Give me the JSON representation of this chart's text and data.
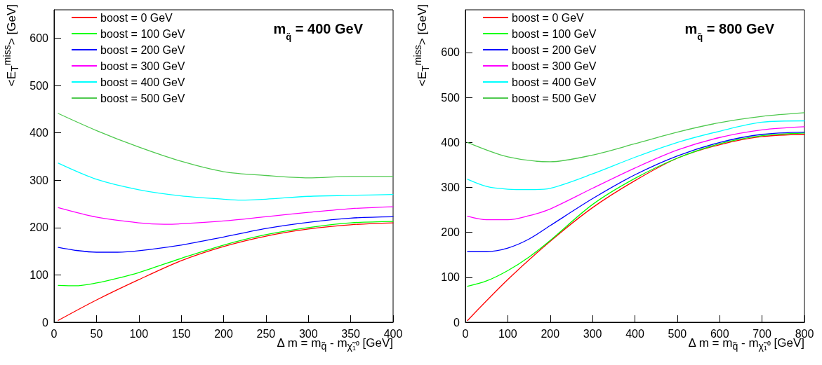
{
  "chart_data": [
    {
      "type": "line",
      "title": "m$_{q̃}$ = 400 GeV",
      "xlabel": "Δ m = m$_{q̃}$ - m$_{χ̃₁⁰}$ [GeV]",
      "ylabel": "<E$_{T}$$^{miss}$> [GeV]",
      "xlim": [
        0,
        400
      ],
      "ylim": [
        0,
        660
      ],
      "xticks": [
        0,
        50,
        100,
        150,
        200,
        250,
        300,
        350,
        400
      ],
      "yticks": [
        0,
        100,
        200,
        300,
        400,
        500,
        600
      ],
      "grid": false,
      "legend": "top left",
      "marker": "none",
      "line_style": "solid",
      "series": [
        {
          "name": "boost = 0 GeV",
          "color": "#ff0000",
          "x": [
            5,
            50,
            100,
            150,
            200,
            250,
            300,
            350,
            400
          ],
          "values": [
            4,
            47,
            90,
            130,
            160,
            182,
            197,
            206,
            210
          ]
        },
        {
          "name": "boost = 100 GeV",
          "color": "#00ff00",
          "x": [
            5,
            25,
            50,
            75,
            100,
            150,
            200,
            250,
            300,
            350,
            400
          ],
          "values": [
            78,
            77,
            83,
            93,
            105,
            135,
            163,
            185,
            200,
            210,
            213
          ]
        },
        {
          "name": "boost = 200 GeV",
          "color": "#0000ff",
          "x": [
            5,
            25,
            50,
            75,
            100,
            150,
            200,
            250,
            300,
            350,
            400
          ],
          "values": [
            158,
            152,
            148,
            148,
            151,
            163,
            180,
            198,
            211,
            220,
            223
          ]
        },
        {
          "name": "boost = 300 GeV",
          "color": "#ff00ff",
          "x": [
            5,
            50,
            100,
            130,
            150,
            200,
            250,
            300,
            350,
            400
          ],
          "values": [
            242,
            222,
            210,
            207,
            208,
            214,
            223,
            232,
            240,
            244
          ]
        },
        {
          "name": "boost = 400 GeV",
          "color": "#00ffff",
          "x": [
            5,
            50,
            100,
            150,
            200,
            220,
            250,
            300,
            350,
            400
          ],
          "values": [
            336,
            302,
            280,
            267,
            260,
            258,
            260,
            266,
            268,
            270
          ]
        },
        {
          "name": "boost = 500 GeV",
          "color": "#4fc94f",
          "x": [
            5,
            50,
            100,
            150,
            200,
            250,
            300,
            350,
            400
          ],
          "values": [
            441,
            405,
            370,
            340,
            318,
            310,
            305,
            308,
            308
          ]
        }
      ]
    },
    {
      "type": "line",
      "title": "m$_{q̃}$ = 800 GeV",
      "xlabel": "Δ m = m$_{q̃}$ - m$_{χ̃₁⁰}$ [GeV]",
      "ylabel": "<E$_{T}$$^{miss}$> [GeV]",
      "xlim": [
        0,
        800
      ],
      "ylim": [
        0,
        695
      ],
      "xticks": [
        0,
        100,
        200,
        300,
        400,
        500,
        600,
        700,
        800
      ],
      "yticks": [
        0,
        100,
        200,
        300,
        400,
        500,
        600
      ],
      "grid": false,
      "legend": "top left",
      "marker": "none",
      "line_style": "solid",
      "series": [
        {
          "name": "boost = 0 GeV",
          "color": "#ff0000",
          "x": [
            5,
            100,
            200,
            300,
            400,
            500,
            600,
            700,
            800
          ],
          "values": [
            4,
            95,
            180,
            255,
            315,
            365,
            395,
            413,
            418
          ]
        },
        {
          "name": "boost = 100 GeV",
          "color": "#00ff00",
          "x": [
            5,
            50,
            100,
            150,
            200,
            300,
            400,
            500,
            600,
            700,
            800
          ],
          "values": [
            80,
            92,
            115,
            145,
            182,
            262,
            320,
            365,
            397,
            415,
            421
          ]
        },
        {
          "name": "boost = 200 GeV",
          "color": "#0000ff",
          "x": [
            5,
            50,
            100,
            150,
            200,
            300,
            400,
            500,
            600,
            700,
            800
          ],
          "values": [
            157,
            157,
            165,
            185,
            215,
            275,
            328,
            370,
            400,
            418,
            423
          ]
        },
        {
          "name": "boost = 300 GeV",
          "color": "#ff00ff",
          "x": [
            5,
            50,
            100,
            150,
            200,
            300,
            400,
            500,
            600,
            700,
            800
          ],
          "values": [
            236,
            228,
            228,
            237,
            252,
            298,
            343,
            383,
            411,
            428,
            435
          ]
        },
        {
          "name": "boost = 400 GeV",
          "color": "#00ffff",
          "x": [
            5,
            50,
            100,
            150,
            200,
            300,
            400,
            500,
            600,
            700,
            800
          ],
          "values": [
            318,
            302,
            296,
            295,
            298,
            330,
            367,
            400,
            425,
            445,
            448
          ]
        },
        {
          "name": "boost = 500 GeV",
          "color": "#4fc94f",
          "x": [
            5,
            100,
            200,
            300,
            400,
            500,
            600,
            700,
            800
          ],
          "values": [
            400,
            368,
            357,
            372,
            397,
            423,
            444,
            458,
            466
          ]
        }
      ]
    }
  ]
}
